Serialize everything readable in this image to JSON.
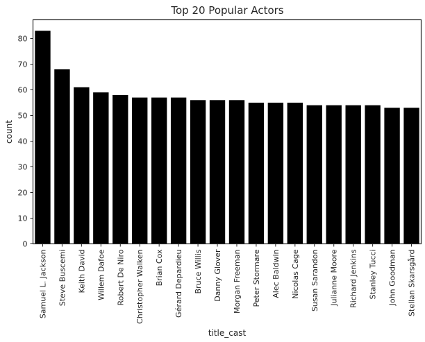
{
  "chart_data": {
    "type": "bar",
    "title": "Top 20 Popular Actors",
    "xlabel": "title_cast",
    "ylabel": "count",
    "ylim": [
      0,
      87.3
    ],
    "yticks": [
      0,
      10,
      20,
      30,
      40,
      50,
      60,
      70,
      80
    ],
    "grid": false,
    "bar_color": "#000000",
    "categories": [
      "Samuel L. Jackson",
      "Steve Buscemi",
      "Keith David",
      "Willem Dafoe",
      "Robert De Niro",
      "Christopher Walken",
      "Brian Cox",
      "Gérard Depardieu",
      "Bruce Willis",
      "Danny Glover",
      "Morgan Freeman",
      "Peter Stormare",
      "Alec Baldwin",
      "Nicolas Cage",
      "Susan Sarandon",
      "Julianne Moore",
      "Richard Jenkins",
      "Stanley Tucci",
      "John Goodman",
      "Stellan Skarsgård"
    ],
    "values": [
      83,
      68,
      61,
      59,
      58,
      57,
      57,
      57,
      56,
      56,
      56,
      55,
      55,
      55,
      54,
      54,
      54,
      54,
      53,
      53
    ]
  }
}
